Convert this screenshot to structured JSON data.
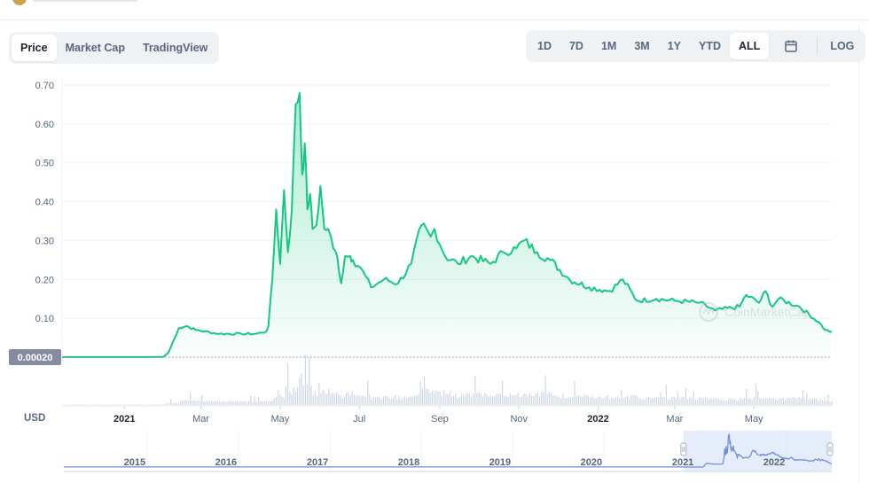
{
  "tabs": [
    {
      "label": "Price",
      "active": true
    },
    {
      "label": "Market Cap",
      "active": false
    },
    {
      "label": "TradingView",
      "active": false
    }
  ],
  "ranges": [
    {
      "label": "1D",
      "active": false
    },
    {
      "label": "7D",
      "active": false
    },
    {
      "label": "1M",
      "active": false
    },
    {
      "label": "3M",
      "active": false
    },
    {
      "label": "1Y",
      "active": false
    },
    {
      "label": "YTD",
      "active": false
    },
    {
      "label": "ALL",
      "active": true
    }
  ],
  "calendar_icon": "calendar-icon",
  "log_label": "LOG",
  "watermark": "CoinMarketCap",
  "colors": {
    "line": "#16c784",
    "fill": "#16c784",
    "volume": "#cfd6e4",
    "navigator": "#6f8cd8",
    "selection": "#dce5f8"
  },
  "chart_data": {
    "type": "line",
    "currency_label": "USD",
    "baseline_label": "0.00020",
    "ylim": [
      0,
      0.7
    ],
    "y_ticks": [
      "0.10",
      "0.20",
      "0.30",
      "0.40",
      "0.50",
      "0.60",
      "0.70"
    ],
    "y_tick_values": [
      0.1,
      0.2,
      0.3,
      0.4,
      0.5,
      0.6,
      0.7
    ],
    "x_ticks": [
      "2021",
      "Mar",
      "May",
      "Jul",
      "Sep",
      "Nov",
      "2022",
      "Mar",
      "May"
    ],
    "x_tick_bold": [
      true,
      false,
      false,
      false,
      false,
      false,
      true,
      false,
      false
    ],
    "x_tick_dates": [
      "2021-01-01",
      "2021-03-01",
      "2021-05-01",
      "2021-07-01",
      "2021-09-01",
      "2021-11-01",
      "2022-01-01",
      "2022-03-01",
      "2022-05-01"
    ],
    "x_range": [
      "2020-11-14",
      "2022-06-30"
    ],
    "series": [
      {
        "x": [
          "2020-11-14",
          "2020-12-15",
          "2021-01-10",
          "2021-01-31",
          "2021-02-04",
          "2021-02-12",
          "2021-02-18",
          "2021-02-25",
          "2021-03-15",
          "2021-04-01",
          "2021-04-12",
          "2021-04-20",
          "2021-04-22",
          "2021-04-25",
          "2021-04-28",
          "2021-05-01",
          "2021-05-04",
          "2021-05-07",
          "2021-05-10",
          "2021-05-13",
          "2021-05-16",
          "2021-05-18",
          "2021-05-20",
          "2021-05-22",
          "2021-05-24",
          "2021-05-26",
          "2021-05-29",
          "2021-06-01",
          "2021-06-04",
          "2021-06-07",
          "2021-06-11",
          "2021-06-14",
          "2021-06-17",
          "2021-06-20",
          "2021-06-24",
          "2021-06-26",
          "2021-07-02",
          "2021-07-10",
          "2021-07-20",
          "2021-07-31",
          "2021-08-10",
          "2021-08-18",
          "2021-08-25",
          "2021-08-28",
          "2021-09-05",
          "2021-09-15",
          "2021-09-25",
          "2021-10-10",
          "2021-10-20",
          "2021-10-30",
          "2021-11-05",
          "2021-11-15",
          "2021-11-25",
          "2021-12-10",
          "2021-12-25",
          "2022-01-10",
          "2022-01-20",
          "2022-01-31",
          "2022-02-15",
          "2022-03-01",
          "2022-03-20",
          "2022-04-01",
          "2022-04-20",
          "2022-04-25",
          "2022-05-05",
          "2022-05-10",
          "2022-05-15",
          "2022-05-20",
          "2022-06-05",
          "2022-06-20",
          "2022-06-25",
          "2022-06-30"
        ],
        "y": [
          0.0002,
          0.0003,
          0.0002,
          0.0005,
          0.012,
          0.075,
          0.08,
          0.07,
          0.06,
          0.06,
          0.06,
          0.065,
          0.08,
          0.2,
          0.38,
          0.24,
          0.43,
          0.27,
          0.38,
          0.65,
          0.68,
          0.47,
          0.55,
          0.38,
          0.42,
          0.33,
          0.34,
          0.44,
          0.33,
          0.33,
          0.28,
          0.26,
          0.19,
          0.26,
          0.26,
          0.25,
          0.23,
          0.18,
          0.2,
          0.19,
          0.24,
          0.34,
          0.31,
          0.33,
          0.26,
          0.24,
          0.26,
          0.24,
          0.27,
          0.28,
          0.3,
          0.27,
          0.25,
          0.2,
          0.18,
          0.17,
          0.2,
          0.145,
          0.15,
          0.145,
          0.14,
          0.12,
          0.13,
          0.16,
          0.14,
          0.17,
          0.13,
          0.15,
          0.13,
          0.09,
          0.07,
          0.065
        ]
      }
    ],
    "navigator_ticks": [
      "2015",
      "2016",
      "2017",
      "2018",
      "2019",
      "2020",
      "2021",
      "2022"
    ],
    "navigator_tick_dates": [
      "2015-01-01",
      "2016-01-01",
      "2017-01-01",
      "2018-01-01",
      "2019-01-01",
      "2020-01-01",
      "2021-01-01",
      "2022-01-01"
    ],
    "navigator_range": [
      "2014-02-01",
      "2022-06-30"
    ]
  }
}
